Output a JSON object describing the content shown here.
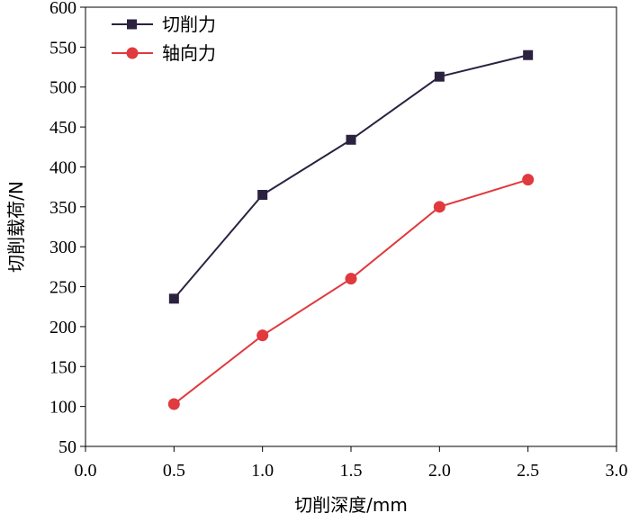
{
  "chart_data": {
    "type": "line",
    "title": "",
    "xlabel": "切削深度/mm",
    "ylabel": "切削载荷/N",
    "xlim": [
      0.0,
      3.0
    ],
    "ylim": [
      50,
      600
    ],
    "x_ticks": [
      "0.0",
      "0.5",
      "1.0",
      "1.5",
      "2.0",
      "2.5",
      "3.0"
    ],
    "x_tick_values": [
      0.0,
      0.5,
      1.0,
      1.5,
      2.0,
      2.5,
      3.0
    ],
    "y_ticks": [
      "50",
      "100",
      "150",
      "200",
      "250",
      "300",
      "350",
      "400",
      "450",
      "500",
      "550",
      "600"
    ],
    "y_tick_values": [
      50,
      100,
      150,
      200,
      250,
      300,
      350,
      400,
      450,
      500,
      550,
      600
    ],
    "grid": false,
    "legend_position": "top-left",
    "x": [
      0.5,
      1.0,
      1.5,
      2.0,
      2.5
    ],
    "series": [
      {
        "name": "切削力",
        "marker": "square",
        "color": "#2b2240",
        "values": [
          235,
          365,
          434,
          513,
          540
        ]
      },
      {
        "name": "轴向力",
        "marker": "circle",
        "color": "#e0393e",
        "values": [
          103,
          189,
          260,
          350,
          384
        ]
      }
    ]
  }
}
